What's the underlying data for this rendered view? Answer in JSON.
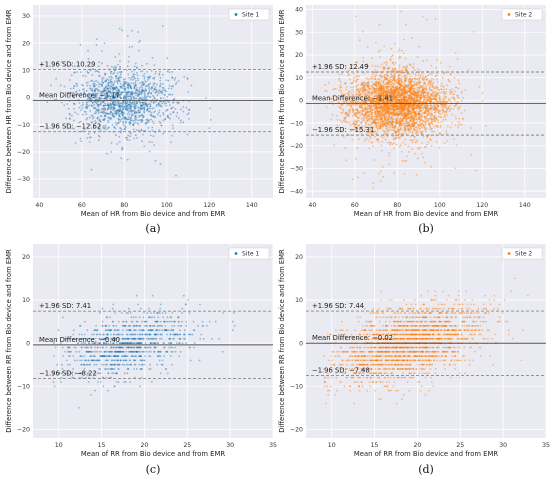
{
  "panels": [
    {
      "caption": "(a)"
    },
    {
      "caption": "(b)"
    },
    {
      "caption": "(c)"
    },
    {
      "caption": "(d)"
    }
  ],
  "colors": {
    "site1": "#1f77b4",
    "site2": "#ff7f0e",
    "mean_line": "#555555",
    "sd_line": "#888888",
    "plot_bg": "#eaeaf2"
  },
  "chart_data": [
    {
      "type": "scatter",
      "title": "",
      "xlabel": "Mean of HR from Bio device and from EMR",
      "ylabel": "Difference between HR from Bio device and from EMR",
      "xlim": [
        37,
        150
      ],
      "ylim": [
        -37,
        34
      ],
      "xticks": [
        40,
        60,
        80,
        100,
        120,
        140
      ],
      "yticks": [
        -30,
        -20,
        -10,
        0,
        10,
        20,
        30
      ],
      "grid": true,
      "legend": "top-right",
      "series": [
        {
          "name": "Site 1",
          "color": "#1f77b4",
          "distribution": {
            "x_center": 80,
            "x_sd": 12,
            "y_center": -1.17,
            "y_sd": 6,
            "n_points": 1400,
            "x_range": [
              43,
              145
            ],
            "y_range": [
              -34,
              33
            ]
          }
        }
      ],
      "mean_difference": -1.17,
      "upper_loa": 10.29,
      "lower_loa": -12.62,
      "annotations": {
        "upper": "+1.96 SD: 10.29",
        "mean": "Mean Difference: −1.17",
        "lower": "−1.96 SD: −12.62"
      }
    },
    {
      "type": "scatter",
      "title": "",
      "xlabel": "Mean of HR from Bio device and from EMR",
      "ylabel": "Difference between HR from Bio device and from EMR",
      "xlim": [
        37,
        150
      ],
      "ylim": [
        -43,
        42
      ],
      "xticks": [
        40,
        60,
        80,
        100,
        120,
        140
      ],
      "yticks": [
        -40,
        -30,
        -20,
        -10,
        0,
        10,
        20,
        30,
        40
      ],
      "grid": true,
      "legend": "top-right",
      "series": [
        {
          "name": "Site 2",
          "color": "#ff7f0e",
          "distribution": {
            "x_center": 80,
            "x_sd": 12,
            "y_center": -1.41,
            "y_sd": 7,
            "n_points": 3500,
            "x_range": [
              45,
              140
            ],
            "y_range": [
              -40,
              40
            ]
          }
        }
      ],
      "mean_difference": -1.41,
      "upper_loa": 12.49,
      "lower_loa": -15.31,
      "annotations": {
        "upper": "+1.96 SD: 12.49",
        "mean": "Mean Difference: −1.41",
        "lower": "−1.96 SD: −15.31"
      }
    },
    {
      "type": "scatter",
      "title": "",
      "xlabel": "Mean of RR from Bio device and from EMR",
      "ylabel": "Difference between RR from Bio device and from EMR",
      "xlim": [
        7,
        35
      ],
      "ylim": [
        -22,
        23
      ],
      "xticks": [
        10,
        15,
        20,
        25,
        30,
        35
      ],
      "yticks": [
        -20,
        -10,
        0,
        10,
        20
      ],
      "grid": true,
      "legend": "top-right",
      "series": [
        {
          "name": "Site 1",
          "color": "#1f77b4",
          "distribution": {
            "x_center": 18,
            "x_sd": 4,
            "y_center": -0.4,
            "y_sd": 3.5,
            "n_points": 1000,
            "x_range": [
              9,
              31
            ],
            "y_range": [
              -17,
              16
            ],
            "diagonal_bands": true
          }
        }
      ],
      "mean_difference": -0.4,
      "upper_loa": 7.41,
      "lower_loa": -8.22,
      "annotations": {
        "upper": "+1.96 SD: 7.41",
        "mean": "Mean Difference: −0.40",
        "lower": "−1.96 SD: −8.22"
      }
    },
    {
      "type": "scatter",
      "title": "",
      "xlabel": "Mean of RR from Bio device and from EMR",
      "ylabel": "Difference between RR from Bio device and from EMR",
      "xlim": [
        7,
        35
      ],
      "ylim": [
        -22,
        23
      ],
      "xticks": [
        10,
        15,
        20,
        25,
        30,
        35
      ],
      "yticks": [
        -20,
        -10,
        0,
        10,
        20
      ],
      "grid": true,
      "legend": "top-right",
      "series": [
        {
          "name": "Site 2",
          "color": "#ff7f0e",
          "distribution": {
            "x_center": 19,
            "x_sd": 4.5,
            "y_center": -0.02,
            "y_sd": 4,
            "n_points": 2200,
            "x_range": [
              9,
              33
            ],
            "y_range": [
              -19,
              20
            ],
            "diagonal_bands": true
          }
        }
      ],
      "mean_difference": -0.02,
      "upper_loa": 7.44,
      "lower_loa": -7.48,
      "annotations": {
        "upper": "+1.96 SD: 7.44",
        "mean": "Mean Difference: −0.02",
        "lower": "−1.96 SD: −7.48"
      }
    }
  ]
}
